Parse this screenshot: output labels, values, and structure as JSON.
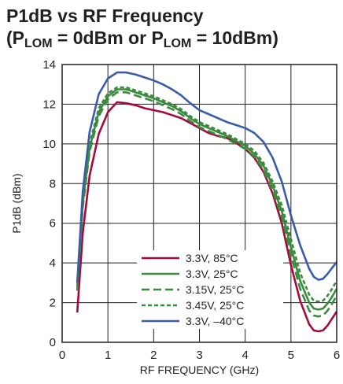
{
  "chart_data": {
    "type": "line",
    "title_line1": "P1dB vs RF Frequency",
    "title_line2_a": "(P",
    "title_line2_sub1": "LOM",
    "title_line2_b": " = 0dBm or P",
    "title_line2_sub2": "LOM",
    "title_line2_c": " = 10dBm)",
    "xlabel": "RF FREQUENCY (GHz)",
    "ylabel": "P1dB (dBm)",
    "xlim": [
      0,
      6
    ],
    "ylim": [
      0,
      14
    ],
    "xticks": [
      "0",
      "1",
      "2",
      "3",
      "4",
      "5",
      "6"
    ],
    "yticks": [
      "0",
      "2",
      "4",
      "6",
      "8",
      "10",
      "12",
      "14"
    ],
    "grid": true,
    "legend_position": "bottom-center",
    "series": [
      {
        "name": "3.3V, 85°C",
        "color": "#a6093d",
        "dash": "solid",
        "x": [
          0.33,
          0.45,
          0.6,
          0.8,
          1.0,
          1.2,
          1.4,
          1.6,
          1.8,
          2.0,
          2.2,
          2.4,
          2.6,
          2.8,
          3.0,
          3.2,
          3.4,
          3.6,
          3.8,
          4.0,
          4.2,
          4.4,
          4.6,
          4.8,
          5.0,
          5.2,
          5.4,
          5.5,
          5.6,
          5.7,
          5.8,
          5.9,
          6.0
        ],
        "y": [
          1.5,
          5.5,
          8.4,
          10.5,
          11.6,
          12.1,
          12.05,
          11.95,
          11.8,
          11.7,
          11.6,
          11.45,
          11.3,
          11.05,
          10.8,
          10.55,
          10.4,
          10.3,
          10.05,
          9.75,
          9.3,
          8.6,
          7.5,
          6.0,
          3.9,
          2.1,
          0.9,
          0.6,
          0.55,
          0.6,
          0.85,
          1.2,
          1.55
        ]
      },
      {
        "name": "3.3V, 25°C",
        "color": "#3b8b3f",
        "dash": "solid",
        "x": [
          0.33,
          0.45,
          0.6,
          0.8,
          1.0,
          1.2,
          1.4,
          1.6,
          1.8,
          2.0,
          2.2,
          2.4,
          2.6,
          2.8,
          3.0,
          3.2,
          3.4,
          3.6,
          3.8,
          4.0,
          4.2,
          4.4,
          4.6,
          4.8,
          5.0,
          5.2,
          5.4,
          5.5,
          5.6,
          5.7,
          5.8,
          5.9,
          6.0
        ],
        "y": [
          2.8,
          7.0,
          9.8,
          11.6,
          12.4,
          12.75,
          12.75,
          12.6,
          12.45,
          12.3,
          12.1,
          11.9,
          11.65,
          11.3,
          11.0,
          10.8,
          10.6,
          10.4,
          10.15,
          9.9,
          9.5,
          8.9,
          7.9,
          6.6,
          4.8,
          3.1,
          2.0,
          1.7,
          1.65,
          1.7,
          1.95,
          2.3,
          2.7
        ]
      },
      {
        "name": "3.15V, 25°C",
        "color": "#3b8b3f",
        "dash": "long",
        "x": [
          0.33,
          0.45,
          0.6,
          0.8,
          1.0,
          1.2,
          1.4,
          1.6,
          1.8,
          2.0,
          2.2,
          2.4,
          2.6,
          2.8,
          3.0,
          3.2,
          3.4,
          3.6,
          3.8,
          4.0,
          4.2,
          4.4,
          4.6,
          4.8,
          5.0,
          5.2,
          5.4,
          5.5,
          5.6,
          5.7,
          5.8,
          5.9,
          6.0
        ],
        "y": [
          2.6,
          6.8,
          9.6,
          11.4,
          12.25,
          12.6,
          12.6,
          12.45,
          12.3,
          12.15,
          11.95,
          11.75,
          11.5,
          11.15,
          10.85,
          10.65,
          10.45,
          10.25,
          10.0,
          9.75,
          9.35,
          8.7,
          7.65,
          6.3,
          4.4,
          2.7,
          1.6,
          1.35,
          1.3,
          1.35,
          1.6,
          1.95,
          2.35
        ]
      },
      {
        "name": "3.45V, 25°C",
        "color": "#3b8b3f",
        "dash": "short",
        "x": [
          0.33,
          0.45,
          0.6,
          0.8,
          1.0,
          1.2,
          1.4,
          1.6,
          1.8,
          2.0,
          2.2,
          2.4,
          2.6,
          2.8,
          3.0,
          3.2,
          3.4,
          3.6,
          3.8,
          4.0,
          4.2,
          4.4,
          4.6,
          4.8,
          5.0,
          5.2,
          5.4,
          5.5,
          5.6,
          5.7,
          5.8,
          5.9,
          6.0
        ],
        "y": [
          3.0,
          7.2,
          10.0,
          11.8,
          12.55,
          12.85,
          12.85,
          12.7,
          12.55,
          12.4,
          12.2,
          12.0,
          11.75,
          11.4,
          11.1,
          10.9,
          10.7,
          10.5,
          10.25,
          10.0,
          9.65,
          9.05,
          8.1,
          6.9,
          5.2,
          3.5,
          2.4,
          2.1,
          2.05,
          2.1,
          2.35,
          2.7,
          3.1
        ]
      },
      {
        "name": "3.3V, –40°C",
        "color": "#3a5ba9",
        "dash": "solid",
        "x": [
          0.33,
          0.45,
          0.6,
          0.8,
          1.0,
          1.2,
          1.4,
          1.6,
          1.8,
          2.0,
          2.2,
          2.4,
          2.6,
          2.8,
          3.0,
          3.2,
          3.4,
          3.6,
          3.8,
          4.0,
          4.2,
          4.4,
          4.6,
          4.8,
          5.0,
          5.2,
          5.4,
          5.5,
          5.6,
          5.7,
          5.8,
          5.9,
          6.0
        ],
        "y": [
          3.0,
          7.6,
          10.6,
          12.5,
          13.3,
          13.6,
          13.6,
          13.5,
          13.35,
          13.2,
          13.0,
          12.75,
          12.45,
          12.05,
          11.7,
          11.5,
          11.3,
          11.1,
          10.95,
          10.8,
          10.55,
          10.1,
          9.3,
          8.1,
          6.4,
          4.9,
          3.7,
          3.3,
          3.15,
          3.2,
          3.45,
          3.75,
          4.05
        ]
      }
    ]
  }
}
